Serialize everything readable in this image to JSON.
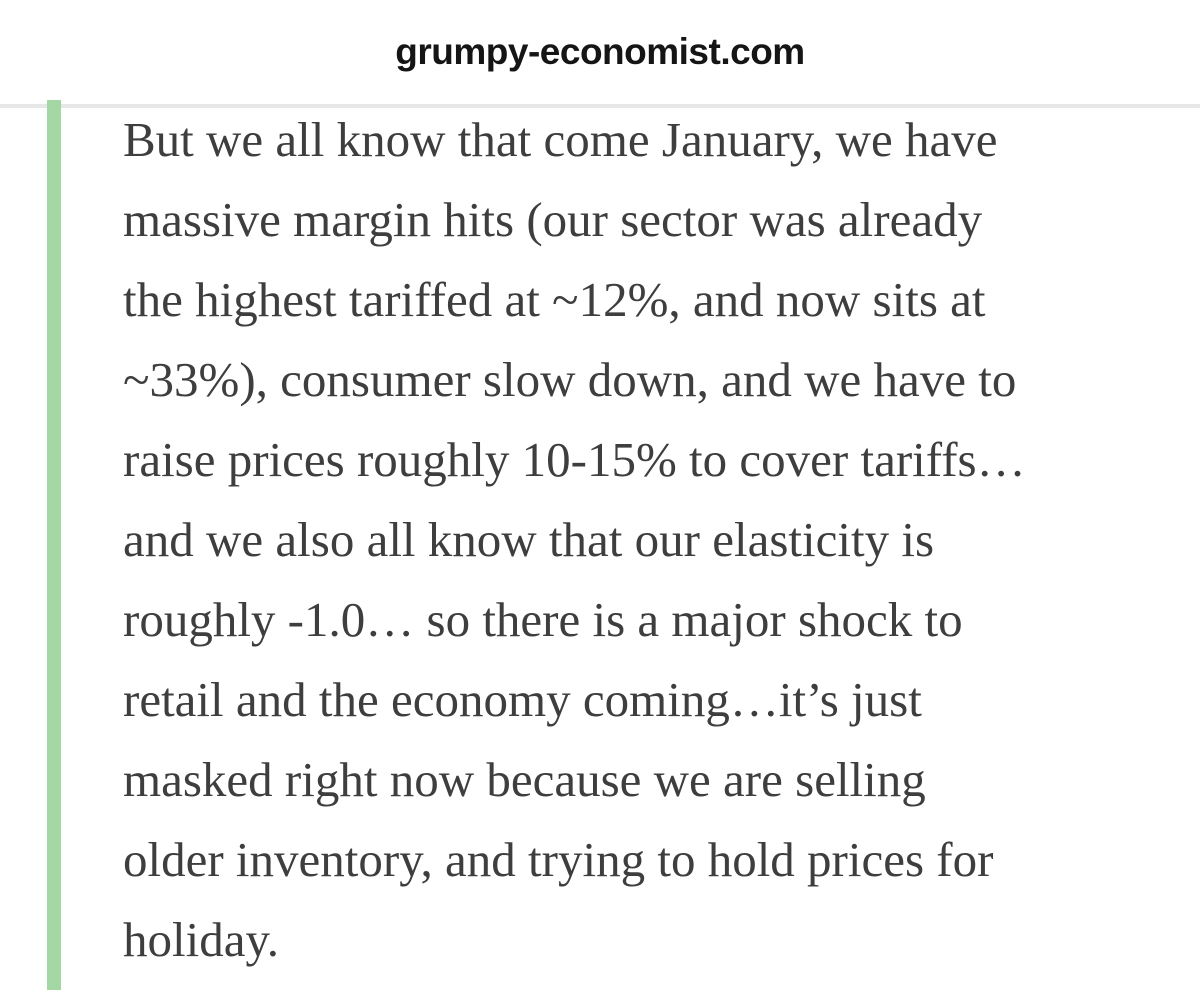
{
  "header": {
    "site_title": "grumpy-economist.com"
  },
  "quote": {
    "lines": [
      "But we all know that come January, we have",
      "massive margin hits (our sector was already",
      "the highest tariffed at ~12%, and now sits at",
      "~33%), consumer slow down, and we have to",
      "raise prices roughly 10-15% to cover tariffs…",
      "and we also all know that our elasticity is",
      "roughly -1.0… so there is a major shock to",
      "retail and the economy coming…it’s just",
      "masked right now because we are selling",
      "older inventory, and trying to hold prices for",
      "holiday."
    ]
  },
  "colors": {
    "title_text": "#151515",
    "quote_text": "#3e3e3e",
    "divider": "#e7e7e7",
    "accent_green": "#a3d8a5",
    "background": "#ffffff"
  }
}
